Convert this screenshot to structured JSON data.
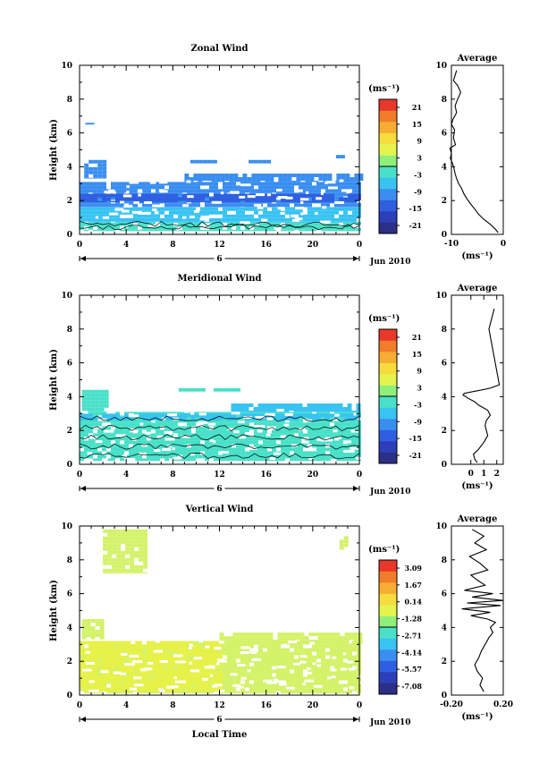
{
  "colorscale": [
    "#2b2f85",
    "#2c3fb8",
    "#2f5fe0",
    "#3a8ef0",
    "#38c3f2",
    "#48e0c8",
    "#8ef07a",
    "#e4f44c",
    "#f6dc3c",
    "#f6ad32",
    "#f17c2a",
    "#e8382a"
  ],
  "chart_data": [
    {
      "type": "heatmap",
      "title": "Zonal Wind",
      "ylabel": "Height (km)",
      "ylim": [
        0,
        10
      ],
      "yticks": [
        "0",
        "2",
        "4",
        "6",
        "8",
        "10"
      ],
      "xlim": [
        0,
        24
      ],
      "xticks": [
        "0",
        "4",
        "8",
        "12",
        "16",
        "20",
        "0"
      ],
      "date_label": "6",
      "month_label": "Jun 2010",
      "unit": "(ms⁻¹)",
      "colorbar_ticks": [
        "21",
        "15",
        "9",
        "3",
        "-3",
        "-9",
        "-15",
        "-21"
      ],
      "colorbar_range": [
        -24,
        24
      ],
      "fields": [
        {
          "x": [
            0,
            24
          ],
          "y": [
            0.2,
            0.7
          ],
          "value": 0,
          "color": "#48e0c8"
        },
        {
          "x": [
            0,
            24
          ],
          "y": [
            0.7,
            1.6
          ],
          "value": -4.5,
          "color": "#38c3f2"
        },
        {
          "x": [
            0,
            24
          ],
          "y": [
            1.6,
            3.1
          ],
          "value": -8,
          "color": "#3a8ef0"
        },
        {
          "x": [
            0,
            24
          ],
          "y": [
            1.9,
            2.4
          ],
          "value": -11,
          "color": "#2f5fe0"
        },
        {
          "x": [
            9,
            24
          ],
          "y": [
            3.1,
            3.6
          ],
          "value": -9,
          "color": "#3a8ef0"
        },
        {
          "x": [
            0.4,
            2.2
          ],
          "y": [
            3.3,
            4.4
          ],
          "value": -10,
          "color": "#3a8ef0"
        },
        {
          "x": [
            9.5,
            11.5
          ],
          "y": [
            4.2,
            4.4
          ],
          "value": -10,
          "color": "#3a8ef0"
        },
        {
          "x": [
            14.5,
            16.2
          ],
          "y": [
            4.2,
            4.4
          ],
          "value": -10,
          "color": "#3a8ef0"
        },
        {
          "x": [
            22,
            22.5
          ],
          "y": [
            4.5,
            4.7
          ],
          "value": -10,
          "color": "#3a8ef0"
        },
        {
          "x": [
            0.5,
            0.9
          ],
          "y": [
            6.5,
            6.6
          ],
          "value": -10,
          "color": "#3a8ef0"
        }
      ],
      "profile": {
        "title": "Average",
        "xlabel": "(ms⁻¹)",
        "xlim": [
          -10,
          0
        ],
        "xticks": [
          "-10",
          "0"
        ],
        "ylim": [
          0,
          10
        ],
        "yticks": [
          "0",
          "2",
          "4",
          "6",
          "8",
          "10"
        ],
        "x": [
          -1.0,
          -1.5,
          -2.5,
          -3.8,
          -4.8,
          -5.5,
          -6.3,
          -7.0,
          -7.6,
          -8.0,
          -8.6,
          -9.0,
          -9.3,
          -9.5,
          -9.8,
          -10.2,
          -10.0,
          -10.3,
          -9.2,
          -9.6,
          -9.4,
          -10.0,
          -9.7,
          -9.0,
          -9.3,
          -8.8,
          -8.2,
          -8.8,
          -9.6,
          -9.3,
          -9.0
        ],
        "y": [
          0.1,
          0.3,
          0.6,
          0.9,
          1.2,
          1.5,
          1.8,
          2.1,
          2.4,
          2.7,
          3.0,
          3.3,
          3.6,
          3.9,
          4.2,
          4.5,
          4.8,
          5.1,
          5.3,
          5.7,
          6.2,
          6.5,
          6.8,
          7.2,
          7.6,
          8.0,
          8.4,
          8.8,
          9.1,
          9.4,
          9.7
        ]
      }
    },
    {
      "type": "heatmap",
      "title": "Meridional Wind",
      "ylabel": "Height (km)",
      "ylim": [
        0,
        10
      ],
      "yticks": [
        "0",
        "2",
        "4",
        "6",
        "8",
        "10"
      ],
      "xlim": [
        0,
        24
      ],
      "xticks": [
        "0",
        "4",
        "8",
        "12",
        "16",
        "20",
        "0"
      ],
      "date_label": "6",
      "month_label": "Jun 2010",
      "unit": "(ms⁻¹)",
      "colorbar_ticks": [
        "21",
        "15",
        "9",
        "3",
        "-3",
        "-9",
        "-15",
        "-21"
      ],
      "colorbar_range": [
        -24,
        24
      ],
      "fields": [
        {
          "x": [
            0,
            24
          ],
          "y": [
            0.2,
            3.1
          ],
          "value": 1,
          "color": "#48e0c8"
        },
        {
          "x": [
            0,
            24
          ],
          "y": [
            2.6,
            3.0
          ],
          "value": -2,
          "color": "#38c3f2"
        },
        {
          "x": [
            13,
            24
          ],
          "y": [
            3.1,
            3.6
          ],
          "value": -1,
          "color": "#38c3f2"
        },
        {
          "x": [
            0.2,
            2.5
          ],
          "y": [
            3.1,
            4.4
          ],
          "value": 1,
          "color": "#48e0c8"
        },
        {
          "x": [
            8.5,
            10.5
          ],
          "y": [
            4.3,
            4.5
          ],
          "value": 1,
          "color": "#48e0c8"
        },
        {
          "x": [
            11.5,
            13.5
          ],
          "y": [
            4.3,
            4.5
          ],
          "value": 1,
          "color": "#48e0c8"
        }
      ],
      "profile": {
        "title": "Average",
        "xlabel": "(ms⁻¹)",
        "xlim": [
          -1.5,
          2.5
        ],
        "xticks": [
          "0",
          "1",
          "2"
        ],
        "ylim": [
          0,
          10
        ],
        "yticks": [
          "0",
          "2",
          "4",
          "6",
          "8",
          "10"
        ],
        "x": [
          0.5,
          0.3,
          0.2,
          0.6,
          1.0,
          1.3,
          1.2,
          1.1,
          1.2,
          1.5,
          1.3,
          0.6,
          0.3,
          -0.2,
          -0.6,
          -0.5,
          0.5,
          1.5,
          2.2,
          1.4,
          1.8
        ],
        "y": [
          0.1,
          0.3,
          0.6,
          0.9,
          1.3,
          1.7,
          2.0,
          2.3,
          2.6,
          2.9,
          3.2,
          3.5,
          3.7,
          3.9,
          4.1,
          4.2,
          4.35,
          4.5,
          4.7,
          8.0,
          9.2
        ]
      }
    },
    {
      "type": "heatmap",
      "title": "Vertical Wind",
      "ylabel": "Height (km)",
      "xlabel": "Local Time",
      "ylim": [
        0,
        10
      ],
      "yticks": [
        "0",
        "2",
        "4",
        "6",
        "8",
        "10"
      ],
      "xlim": [
        0,
        24
      ],
      "xticks": [
        "0",
        "4",
        "8",
        "12",
        "16",
        "20",
        "0"
      ],
      "date_label": "6",
      "month_label": "Jun 2010",
      "unit": "(ms⁻¹)",
      "colorbar_ticks": [
        "3.09",
        "1.67",
        "0.14",
        "-1.28",
        "-2.71",
        "-4.14",
        "-5.57",
        "-7.08"
      ],
      "colorbar_range": [
        -7.8,
        3.8
      ],
      "fields": [
        {
          "x": [
            0,
            24
          ],
          "y": [
            0.1,
            3.2
          ],
          "value": 0.0,
          "color": "#d4f26a"
        },
        {
          "x": [
            0,
            12
          ],
          "y": [
            0.2,
            3.2
          ],
          "value": 0.2,
          "color": "#e6f24a"
        },
        {
          "x": [
            12,
            24
          ],
          "y": [
            3.0,
            3.7
          ],
          "value": 0.0,
          "color": "#d4f26a"
        },
        {
          "x": [
            0.2,
            2.0
          ],
          "y": [
            3.3,
            4.5
          ],
          "value": 0.0,
          "color": "#d4f26a"
        },
        {
          "x": [
            2.0,
            5.5
          ],
          "y": [
            7.2,
            9.8
          ],
          "value": 0.0,
          "color": "#d4f26a"
        },
        {
          "x": [
            22.3,
            23.0
          ],
          "y": [
            8.6,
            9.4
          ],
          "value": 0.0,
          "color": "#d4f26a"
        }
      ],
      "profile": {
        "title": "Average",
        "xlabel": "(ms⁻¹)",
        "xlim": [
          -0.2,
          0.2
        ],
        "xticks": [
          "-0.20",
          "0.20"
        ],
        "ylim": [
          0,
          10
        ],
        "yticks": [
          "0",
          "2",
          "4",
          "6",
          "8",
          "10"
        ],
        "x": [
          0.05,
          0.02,
          0.04,
          0.0,
          -0.02,
          0.01,
          0.03,
          0.06,
          0.09,
          0.12,
          0.1,
          0.14,
          0.08,
          -0.05,
          0.1,
          -0.12,
          0.18,
          -0.08,
          0.2,
          -0.04,
          0.12,
          -0.1,
          0.06,
          0.0,
          -0.05,
          0.08,
          0.02,
          -0.06,
          0.07,
          -0.02,
          0.05,
          -0.04
        ],
        "y": [
          0.2,
          0.6,
          1.0,
          1.4,
          1.8,
          2.2,
          2.6,
          3.0,
          3.4,
          3.7,
          4.0,
          4.3,
          4.5,
          4.7,
          4.9,
          5.1,
          5.3,
          5.45,
          5.6,
          5.8,
          6.0,
          6.2,
          6.5,
          6.8,
          7.1,
          7.4,
          7.8,
          8.2,
          8.6,
          9.0,
          9.4,
          9.8
        ]
      }
    }
  ]
}
